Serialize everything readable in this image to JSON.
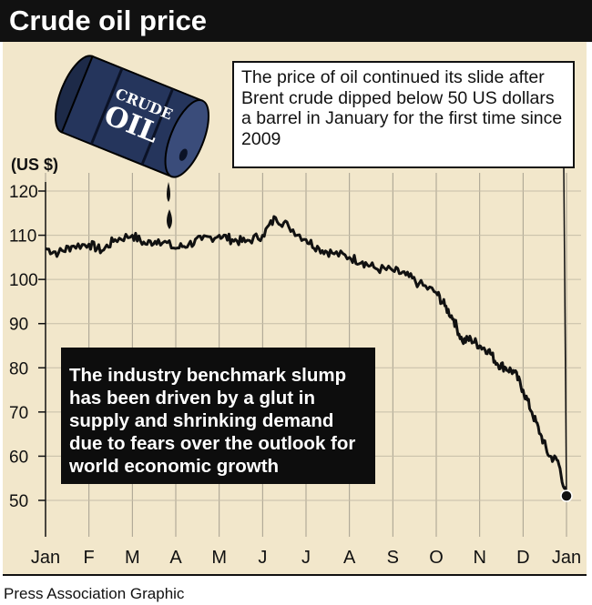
{
  "header": {
    "title": "Crude oil price"
  },
  "barrel": {
    "label_top": "CRUDE",
    "label_main": "OIL"
  },
  "annotations": {
    "callout": "The price of oil continued its slide after Brent crude dipped below 50 US dollars a barrel in January for the first time since 2009",
    "explanation": "The industry benchmark slump has been driven by a glut in supply and shrinking demand due to fears over the outlook for world economic growth"
  },
  "footer": {
    "credit": "Press Association Graphic"
  },
  "colors": {
    "background": "#f2e7cb",
    "line": "#111111",
    "title_bar": "#111111"
  },
  "chart_data": {
    "type": "line",
    "ylabel": "(US $)",
    "ylim": [
      50,
      120
    ],
    "yticks": [
      50,
      60,
      70,
      80,
      90,
      100,
      110,
      120
    ],
    "x_ticks": [
      "Jan",
      "F",
      "M",
      "A",
      "M",
      "J",
      "J",
      "A",
      "S",
      "O",
      "N",
      "D",
      "Jan"
    ],
    "grid": true,
    "series": [
      {
        "x": [
          0,
          0.3,
          0.6,
          1.0,
          1.3,
          1.6,
          2.0,
          2.3,
          2.6,
          3.0,
          3.3,
          3.6,
          4.0,
          4.3,
          4.6,
          5.0,
          5.3,
          5.6,
          6.0,
          6.3,
          6.6,
          7.0,
          7.3,
          7.6,
          8.0,
          8.3,
          8.6,
          9.0,
          9.2,
          9.4,
          9.6,
          9.8,
          10.0,
          10.2,
          10.4,
          10.6,
          10.8,
          11.0,
          11.2,
          11.4,
          11.6,
          11.8,
          12.0
        ],
        "values": [
          107,
          106,
          107.5,
          108,
          106.5,
          109,
          110,
          108,
          109,
          107,
          108,
          109,
          110,
          109,
          108.5,
          110,
          114,
          112,
          109,
          107,
          106,
          105,
          104,
          102.5,
          102,
          101,
          99,
          97,
          94,
          91,
          86,
          86.5,
          85,
          84,
          81,
          80,
          79,
          75,
          70,
          65,
          60,
          59,
          51
        ]
      }
    ],
    "final_point": {
      "x": 12.0,
      "value": 51
    }
  }
}
